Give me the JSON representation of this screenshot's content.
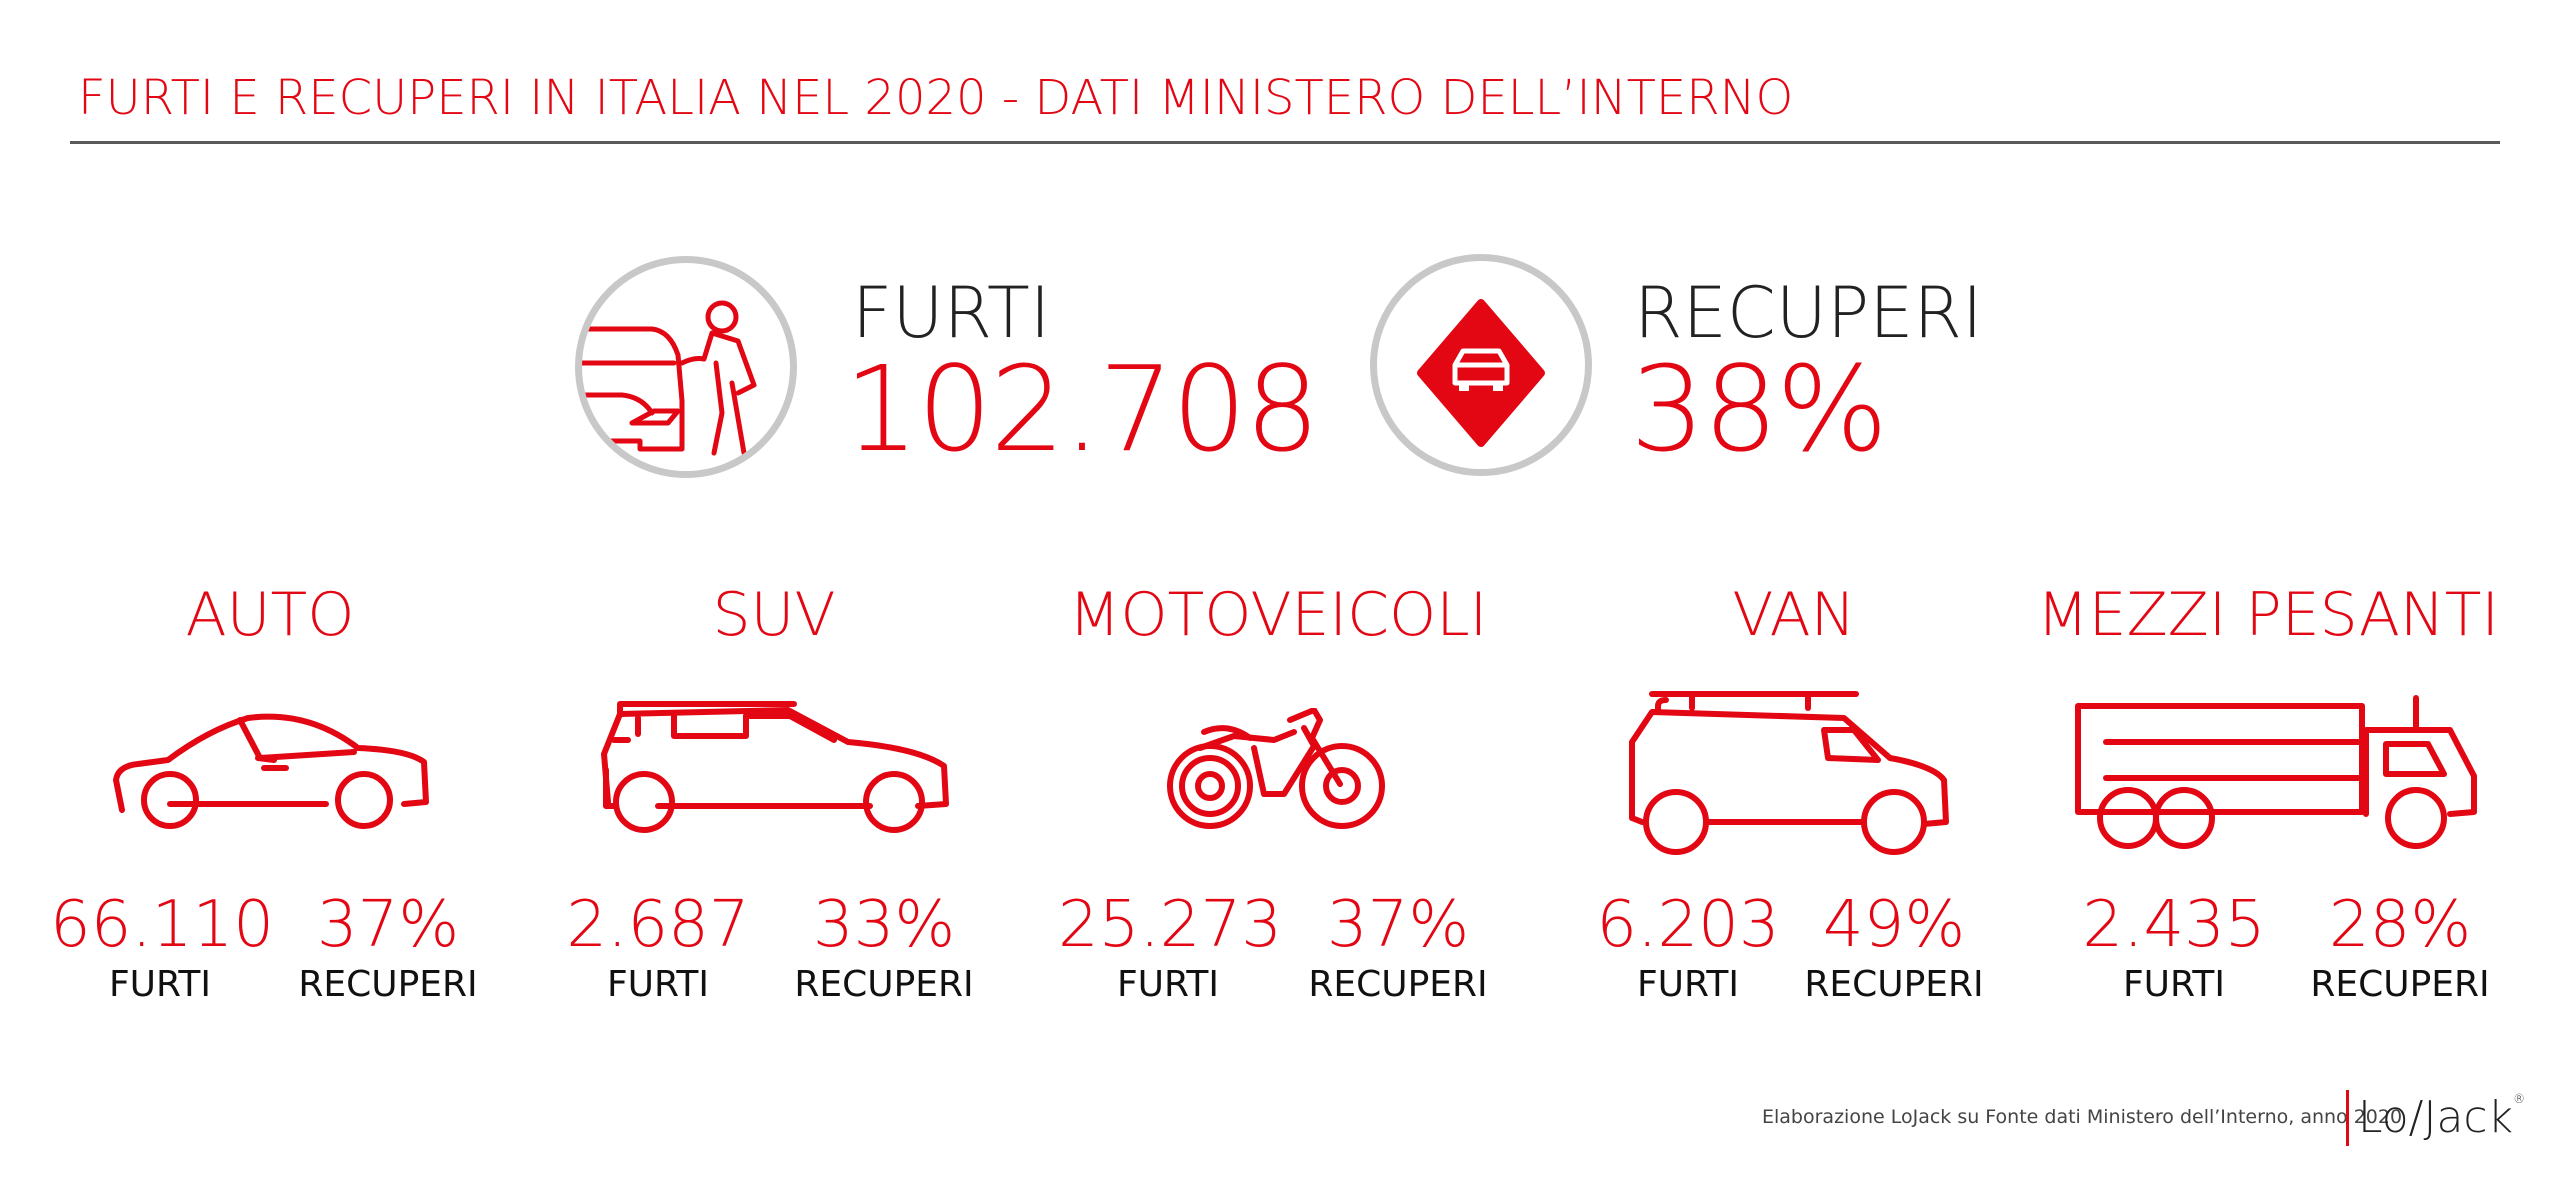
{
  "title": "FURTI E RECUPERI IN ITALIA NEL 2020 - DATI MINISTERO DELL’INTERNO",
  "hero": {
    "furti_label": "FURTI",
    "furti_value": "102.708",
    "recuperi_label": "RECUPERI",
    "recuperi_value": "38%"
  },
  "categories": [
    {
      "name": "AUTO",
      "furti": "66.110",
      "furti_label": "FURTI",
      "recuperi": "37%",
      "recuperi_label": "RECUPERI",
      "icon": "car-icon"
    },
    {
      "name": "SUV",
      "furti": "2.687",
      "furti_label": "FURTI",
      "recuperi": "33%",
      "recuperi_label": "RECUPERI",
      "icon": "suv-icon"
    },
    {
      "name": "MOTOVEICOLI",
      "furti": "25.273",
      "furti_label": "FURTI",
      "recuperi": "37%",
      "recuperi_label": "RECUPERI",
      "icon": "motorcycle-icon"
    },
    {
      "name": "VAN",
      "furti": "6.203",
      "furti_label": "FURTI",
      "recuperi": "49%",
      "recuperi_label": "RECUPERI",
      "icon": "van-icon"
    },
    {
      "name": "MEZZI PESANTI",
      "furti": "2.435",
      "furti_label": "FURTI",
      "recuperi": "28%",
      "recuperi_label": "RECUPERI",
      "icon": "truck-icon"
    }
  ],
  "footer": {
    "source": "Elaborazione LoJack su Fonte dati Ministero dell’Interno, anno 2020",
    "logo": "Lo/Jack"
  },
  "colors": {
    "accent": "#e30613",
    "circle": "#c8c8c8",
    "rule": "#5a5a5a"
  }
}
